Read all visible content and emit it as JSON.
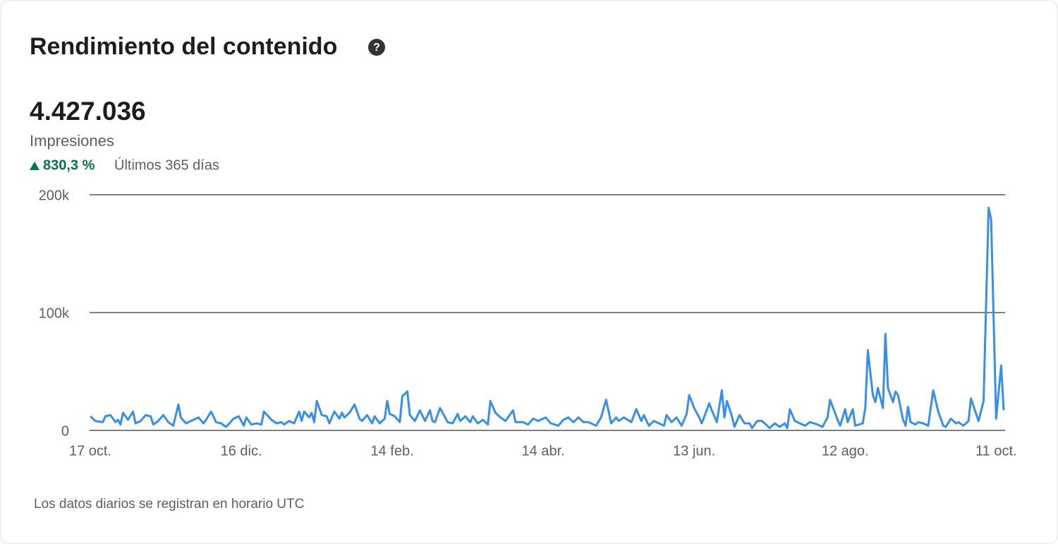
{
  "header": {
    "title": "Rendimiento del contenido"
  },
  "metric": {
    "value": "4.427.036",
    "label": "Impresiones",
    "change": "830,3 %",
    "period": "Últimos 365 días"
  },
  "footnote": "Los datos diarios se registran en horario UTC",
  "chart_data": {
    "type": "line",
    "color": "#378fe9",
    "grid": true,
    "xlim": [
      0,
      363
    ],
    "xticks": [
      {
        "value": 0,
        "label": "17 oct."
      },
      {
        "value": 60,
        "label": "16 dic."
      },
      {
        "value": 120,
        "label": "14 feb."
      },
      {
        "value": 180,
        "label": "14 abr."
      },
      {
        "value": 240,
        "label": "13 jun."
      },
      {
        "value": 300,
        "label": "12 ago."
      },
      {
        "value": 360,
        "label": "11 oct."
      }
    ],
    "ylim": [
      0,
      200000
    ],
    "yticks": [
      0,
      {
        "value": 100000,
        "label": "100k"
      },
      {
        "value": 200000,
        "label": "200k"
      }
    ],
    "x": [
      0,
      2,
      5,
      6,
      8,
      10,
      11,
      12,
      13,
      15,
      17,
      18,
      20,
      22,
      24,
      25,
      27,
      29,
      31,
      33,
      35,
      36,
      38,
      40,
      43,
      45,
      46,
      48,
      50,
      52,
      54,
      57,
      59,
      61,
      62,
      64,
      66,
      68,
      69,
      72,
      74,
      76,
      77,
      79,
      81,
      83,
      84,
      85,
      87,
      88,
      89,
      90,
      92,
      94,
      95,
      97,
      99,
      100,
      101,
      103,
      105,
      107,
      108,
      110,
      112,
      113,
      115,
      117,
      118,
      119,
      121,
      123,
      124,
      126,
      127,
      129,
      131,
      133,
      135,
      136,
      137,
      139,
      141,
      142,
      144,
      146,
      147,
      149,
      151,
      152,
      154,
      156,
      158,
      159,
      161,
      163,
      165,
      168,
      169,
      172,
      174,
      176,
      178,
      181,
      183,
      186,
      188,
      190,
      192,
      194,
      196,
      198,
      201,
      203,
      205,
      207,
      209,
      210,
      212,
      215,
      217,
      219,
      220,
      222,
      224,
      226,
      228,
      229,
      231,
      233,
      235,
      237,
      238,
      240,
      242,
      243,
      246,
      247,
      249,
      251,
      252,
      253,
      255,
      256,
      258,
      260,
      262,
      263,
      265,
      267,
      270,
      272,
      274,
      276,
      277,
      278,
      280,
      282,
      284,
      286,
      289,
      291,
      293,
      294,
      297,
      298,
      300,
      301,
      303,
      304,
      307,
      308,
      309,
      311,
      312,
      313,
      315,
      316,
      317,
      319,
      320,
      321,
      323,
      324,
      325,
      326,
      328,
      329,
      331,
      333,
      335,
      337,
      339,
      340,
      342,
      344,
      345,
      347,
      349,
      350,
      353,
      355,
      357,
      358,
      360,
      362,
      363
    ],
    "values": [
      12000,
      8000,
      7000,
      12000,
      13000,
      7000,
      9000,
      5000,
      15000,
      9000,
      16000,
      6000,
      8000,
      13000,
      12000,
      5000,
      8000,
      13000,
      7000,
      4000,
      22000,
      11000,
      6000,
      8000,
      11000,
      6000,
      9000,
      16000,
      7000,
      6000,
      3000,
      10000,
      12000,
      4000,
      11000,
      5000,
      6000,
      5000,
      16000,
      9000,
      6000,
      7000,
      5000,
      8000,
      6000,
      16000,
      8000,
      16000,
      11000,
      15000,
      7000,
      25000,
      13000,
      12000,
      6000,
      16000,
      10000,
      15000,
      11000,
      15000,
      22000,
      10000,
      8000,
      13000,
      6000,
      12000,
      6000,
      10000,
      25000,
      14000,
      12000,
      7000,
      29000,
      33000,
      13000,
      8000,
      17000,
      8000,
      17000,
      8000,
      7000,
      19000,
      11000,
      7000,
      6000,
      14000,
      8000,
      12000,
      7000,
      12000,
      6000,
      9000,
      5000,
      25000,
      15000,
      11000,
      8000,
      17000,
      7000,
      7000,
      5000,
      10000,
      8000,
      11000,
      6000,
      4000,
      9000,
      11000,
      7000,
      11000,
      7000,
      7000,
      4000,
      11000,
      26000,
      6000,
      11000,
      8000,
      11000,
      7000,
      18000,
      8000,
      13000,
      4000,
      8000,
      6000,
      4000,
      13000,
      7000,
      11000,
      4000,
      14000,
      30000,
      19000,
      11000,
      6000,
      23000,
      17000,
      7000,
      34000,
      11000,
      25000,
      12000,
      3000,
      13000,
      6000,
      6000,
      2000,
      8000,
      8000,
      2000,
      6000,
      3000,
      6000,
      2000,
      18000,
      8000,
      6000,
      4000,
      7000,
      5000,
      3000,
      11000,
      26000,
      9000,
      4000,
      18000,
      7000,
      18000,
      4000,
      6000,
      19000,
      68000,
      30000,
      24000,
      36000,
      19000,
      82000,
      36000,
      24000,
      33000,
      30000,
      9000,
      4000,
      20000,
      7000,
      5000,
      7000,
      6000,
      4000,
      34000,
      16000,
      4000,
      3000,
      10000,
      6000,
      7000,
      4000,
      8000,
      27000,
      8000,
      25000,
      189000,
      179000,
      10000,
      55000,
      17000
    ]
  }
}
